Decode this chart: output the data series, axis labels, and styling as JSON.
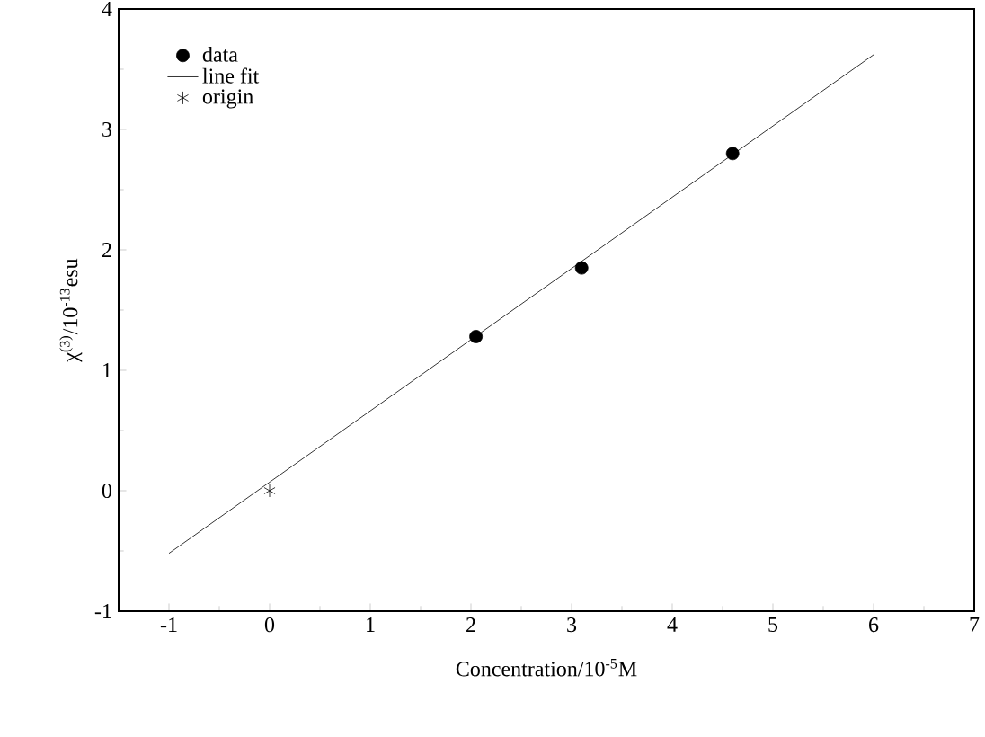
{
  "chart_data": {
    "type": "scatter",
    "xlabel": "Concentration/10$^{-5}$M",
    "ylabel": "χ$^{(3)}$/10$^{-13}$esu",
    "xlim": [
      -1.5,
      7
    ],
    "ylim": [
      -1,
      4
    ],
    "xticks": [
      -1,
      0,
      1,
      2,
      3,
      4,
      5,
      6,
      7
    ],
    "yticks": [
      -1,
      0,
      1,
      2,
      3,
      4
    ],
    "legend": "top left",
    "grid": false,
    "series": [
      {
        "name": "data",
        "marker": "circle",
        "color": "#000000",
        "x": [
          2.05,
          3.1,
          4.6
        ],
        "values": [
          1.28,
          1.85,
          2.8
        ]
      },
      {
        "name": "line fit",
        "type": "line",
        "marker": "none",
        "line_style": "solid",
        "color": "#000000",
        "x": [
          -1,
          6
        ],
        "values": [
          -0.52,
          3.62
        ]
      },
      {
        "name": "origin",
        "marker": "cross",
        "color": "#000000",
        "x": [
          0
        ],
        "values": [
          0
        ]
      }
    ]
  }
}
